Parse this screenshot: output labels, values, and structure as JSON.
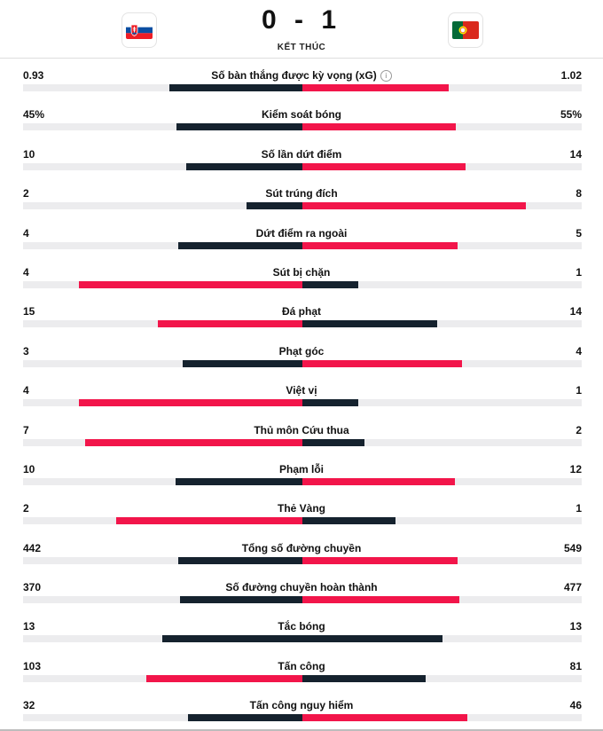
{
  "match": {
    "score": "0 - 1",
    "status": "KẾT THÚC",
    "home_flag_icon": "slovakia-flag",
    "away_flag_icon": "portugal-flag"
  },
  "colors": {
    "home": "#15222e",
    "away": "#f2154a",
    "track": "#ececee"
  },
  "stats": [
    {
      "label": "Số bàn thắng được kỳ vọng (xG)",
      "home": "0.93",
      "away": "1.02",
      "home_share": 0.477,
      "away_share": 0.523,
      "home_color": "dark",
      "away_color": "red",
      "info": true
    },
    {
      "label": "Kiểm soát bóng",
      "home": "45%",
      "away": "55%",
      "home_share": 0.45,
      "away_share": 0.55,
      "home_color": "dark",
      "away_color": "red"
    },
    {
      "label": "Số lần dứt điểm",
      "home": "10",
      "away": "14",
      "home_share": 0.417,
      "away_share": 0.583,
      "home_color": "dark",
      "away_color": "red"
    },
    {
      "label": "Sút trúng đích",
      "home": "2",
      "away": "8",
      "home_share": 0.2,
      "away_share": 0.8,
      "home_color": "dark",
      "away_color": "red"
    },
    {
      "label": "Dứt điểm ra ngoài",
      "home": "4",
      "away": "5",
      "home_share": 0.444,
      "away_share": 0.556,
      "home_color": "dark",
      "away_color": "red"
    },
    {
      "label": "Sút bị chặn",
      "home": "4",
      "away": "1",
      "home_share": 0.8,
      "away_share": 0.2,
      "home_color": "red",
      "away_color": "dark"
    },
    {
      "label": "Đá phạt",
      "home": "15",
      "away": "14",
      "home_share": 0.517,
      "away_share": 0.483,
      "home_color": "red",
      "away_color": "dark"
    },
    {
      "label": "Phạt góc",
      "home": "3",
      "away": "4",
      "home_share": 0.429,
      "away_share": 0.571,
      "home_color": "dark",
      "away_color": "red"
    },
    {
      "label": "Việt vị",
      "home": "4",
      "away": "1",
      "home_share": 0.8,
      "away_share": 0.2,
      "home_color": "red",
      "away_color": "dark"
    },
    {
      "label": "Thủ môn Cứu thua",
      "home": "7",
      "away": "2",
      "home_share": 0.778,
      "away_share": 0.222,
      "home_color": "red",
      "away_color": "dark"
    },
    {
      "label": "Phạm lỗi",
      "home": "10",
      "away": "12",
      "home_share": 0.455,
      "away_share": 0.545,
      "home_color": "dark",
      "away_color": "red"
    },
    {
      "label": "Thẻ Vàng",
      "home": "2",
      "away": "1",
      "home_share": 0.667,
      "away_share": 0.333,
      "home_color": "red",
      "away_color": "dark"
    },
    {
      "label": "Tổng số đường chuyền",
      "home": "442",
      "away": "549",
      "home_share": 0.446,
      "away_share": 0.554,
      "home_color": "dark",
      "away_color": "red"
    },
    {
      "label": "Số đường chuyền hoàn thành",
      "home": "370",
      "away": "477",
      "home_share": 0.437,
      "away_share": 0.563,
      "home_color": "dark",
      "away_color": "red"
    },
    {
      "label": "Tắc bóng",
      "home": "13",
      "away": "13",
      "home_share": 0.5,
      "away_share": 0.5,
      "home_color": "dark",
      "away_color": "dark"
    },
    {
      "label": "Tấn công",
      "home": "103",
      "away": "81",
      "home_share": 0.56,
      "away_share": 0.44,
      "home_color": "red",
      "away_color": "dark"
    },
    {
      "label": "Tấn công nguy hiểm",
      "home": "32",
      "away": "46",
      "home_share": 0.41,
      "away_share": 0.59,
      "home_color": "dark",
      "away_color": "red"
    }
  ]
}
